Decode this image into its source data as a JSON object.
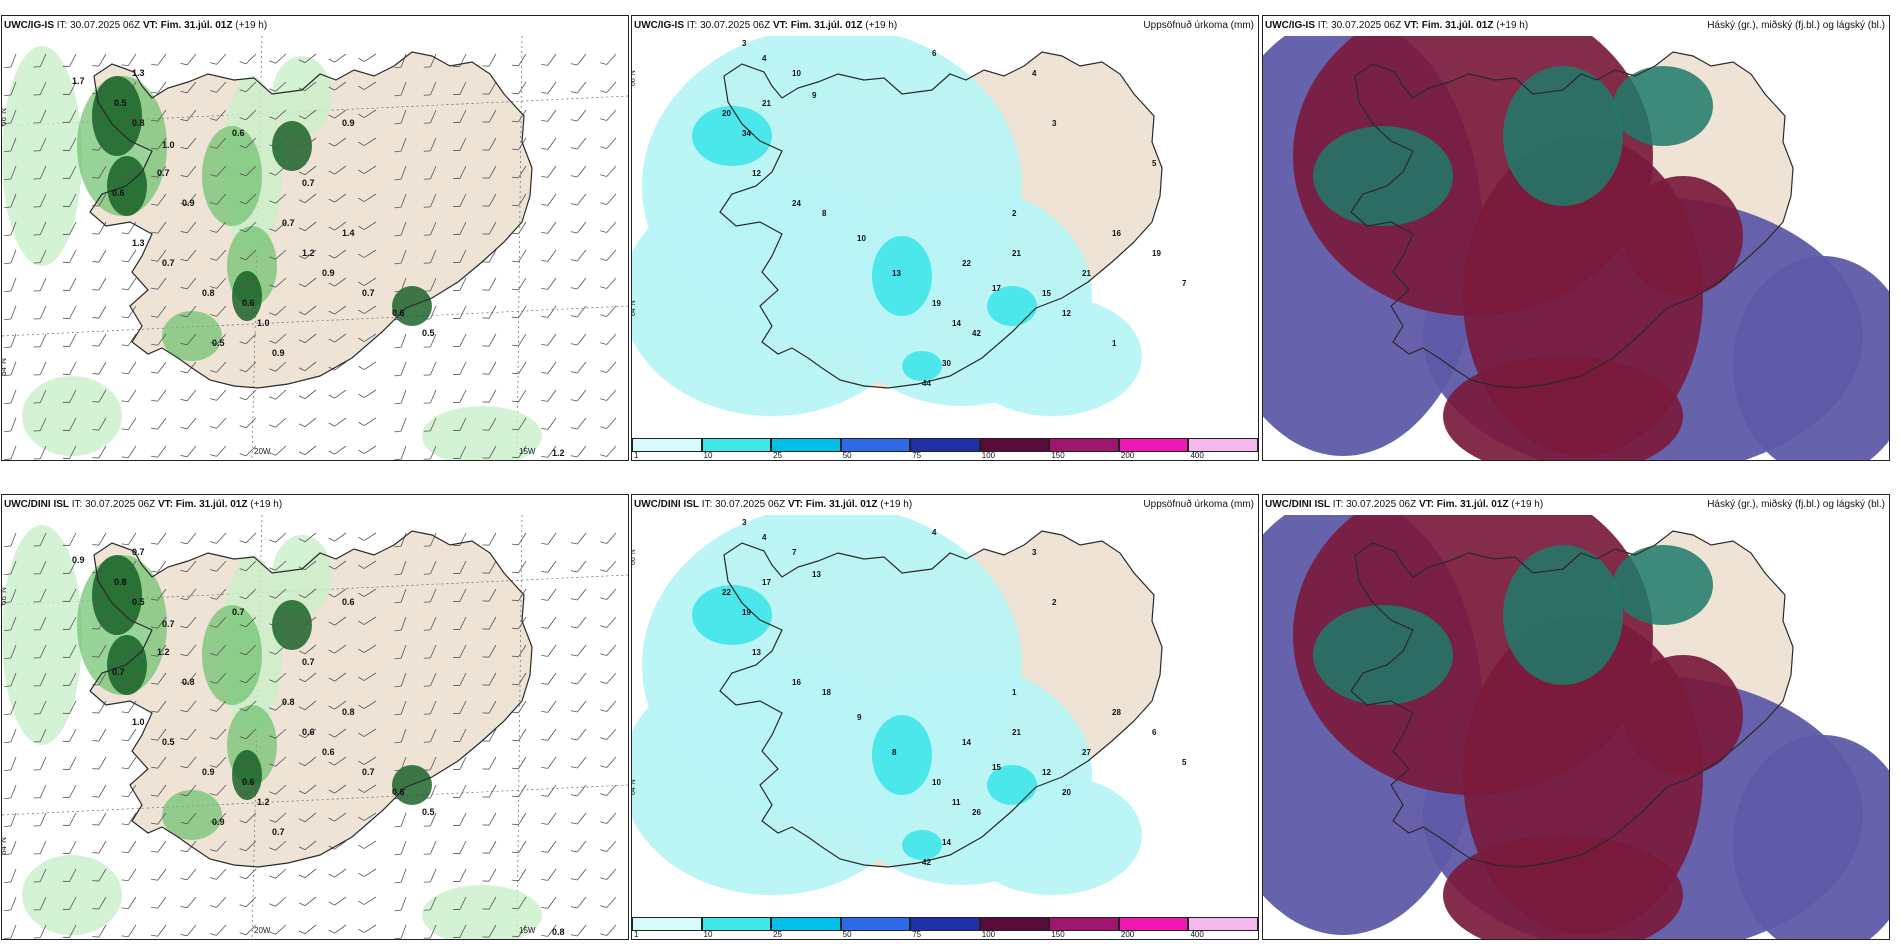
{
  "panels": [
    {
      "model": "UWC/IG-IS",
      "issue": "IT: 30.07.2025 06Z",
      "valid_label": "VT:",
      "valid": "Fim. 31.júl. 01Z",
      "lead": "(+19 h)",
      "right_title": "",
      "kind": "wind"
    },
    {
      "model": "UWC/IG-IS",
      "issue": "IT: 30.07.2025 06Z",
      "valid_label": "VT:",
      "valid": "Fim. 31.júl. 01Z",
      "lead": "(+19 h)",
      "right_title": "Uppsöfnuð úrkoma (mm)",
      "kind": "precip"
    },
    {
      "model": "UWC/IG-IS",
      "issue": "IT: 30.07.2025 06Z",
      "valid_label": "VT:",
      "valid": "Fim. 31.júl. 01Z",
      "lead": "(+19 h)",
      "right_title": "Háský (gr.), miðský (fj.bl.) og lágský (bl.)",
      "kind": "cloud"
    },
    {
      "model": "UWC/DINI ISL",
      "issue": "IT: 30.07.2025 06Z",
      "valid_label": "VT:",
      "valid": "Fim. 31.júl. 01Z",
      "lead": "(+19 h)",
      "right_title": "",
      "kind": "wind"
    },
    {
      "model": "UWC/DINI ISL",
      "issue": "IT: 30.07.2025 06Z",
      "valid_label": "VT:",
      "valid": "Fim. 31.júl. 01Z",
      "lead": "(+19 h)",
      "right_title": "Uppsöfnuð úrkoma (mm)",
      "kind": "precip"
    },
    {
      "model": "UWC/DINI ISL",
      "issue": "IT: 30.07.2025 06Z",
      "valid_label": "VT:",
      "valid": "Fim. 31.júl. 01Z",
      "lead": "(+19 h)",
      "right_title": "Háský (gr.), miðský (fj.bl.) og lágský (bl.)",
      "kind": "cloud"
    }
  ],
  "axis_labels": {
    "lat_66": "66°N",
    "lat_64": "64°N",
    "lon_20": "20W",
    "lon_15": "15W"
  },
  "colorbar": {
    "ticks": [
      "1",
      "10",
      "25",
      "50",
      "75",
      "100",
      "150",
      "200",
      "400"
    ],
    "colors": [
      "#d6fbfb",
      "#3fe6ea",
      "#00bfe8",
      "#2f6ae6",
      "#1f2fa8",
      "#5a0a3a",
      "#a0166e",
      "#f018b4",
      "#f5b8ee"
    ]
  },
  "wind_values": {
    "ig": [
      "1.7",
      "1.3",
      "0.5",
      "0.8",
      "1.0",
      "0.7",
      "0.6",
      "0.9",
      "1.3",
      "0.7",
      "0.8",
      "0.6",
      "1.0",
      "0.9",
      "1.2",
      "0.9",
      "1.4",
      "0.7",
      "0.6",
      "0.5",
      "0.5",
      "0.7",
      "0.6",
      "0.9",
      "0.7",
      "1.2"
    ],
    "dini": [
      "0.9",
      "0.7",
      "0.8",
      "0.5",
      "0.7",
      "1.2",
      "0.7",
      "0.8",
      "1.0",
      "0.5",
      "0.9",
      "0.6",
      "1.2",
      "0.7",
      "0.6",
      "0.6",
      "0.8",
      "0.7",
      "0.6",
      "0.5",
      "0.9",
      "0.8",
      "0.7",
      "0.6",
      "0.7",
      "0.8"
    ]
  },
  "precip_values": {
    "ig": [
      "3",
      "4",
      "10",
      "9",
      "20",
      "34",
      "21",
      "12",
      "24",
      "8",
      "10",
      "13",
      "19",
      "22",
      "17",
      "14",
      "44",
      "30",
      "42",
      "21",
      "15",
      "12",
      "21",
      "16",
      "19",
      "7",
      "6",
      "4",
      "3",
      "2",
      "1",
      "5"
    ],
    "dini": [
      "3",
      "4",
      "7",
      "13",
      "22",
      "19",
      "17",
      "13",
      "16",
      "18",
      "9",
      "8",
      "10",
      "14",
      "15",
      "11",
      "42",
      "14",
      "26",
      "21",
      "12",
      "20",
      "27",
      "28",
      "6",
      "5",
      "4",
      "3",
      "2",
      "1"
    ]
  },
  "colors": {
    "land": "#efe3d6",
    "coast": "#2a2a2a",
    "wind_green_light": "#c9efc9",
    "wind_green_mid": "#6cc06c",
    "wind_green_dark": "#0f5a1f",
    "precip_cyan": "#b8f4f6",
    "cloud_navy": "#5e5aa8",
    "cloud_maroon": "#7a1a3d",
    "cloud_teal": "#1f7a6a"
  }
}
